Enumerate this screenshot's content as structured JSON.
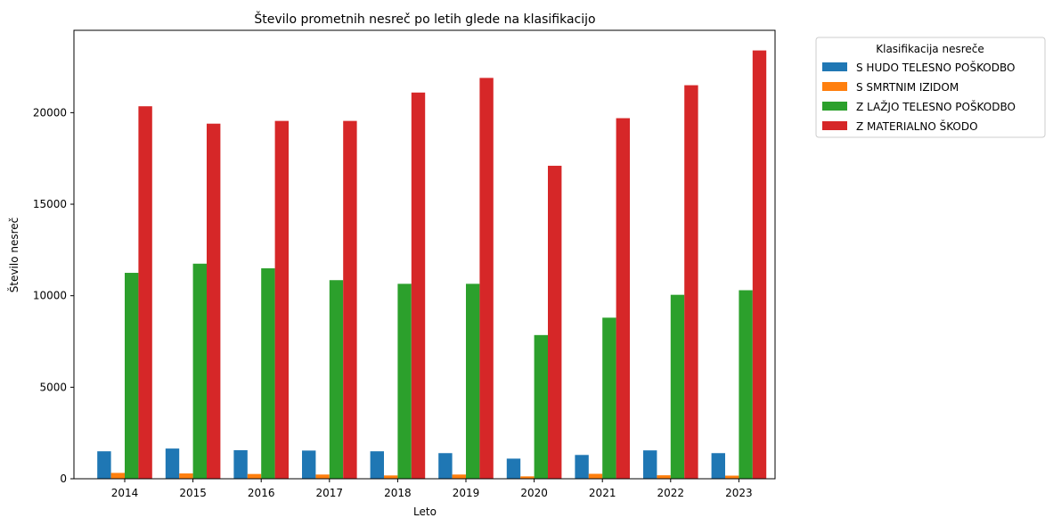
{
  "chart_data": {
    "type": "bar",
    "title": "Število prometnih nesreč po letih glede na klasifikacijo",
    "xlabel": "Leto",
    "ylabel": "Število nesreč",
    "ylim": [
      0,
      24500
    ],
    "yticks": [
      0,
      5000,
      10000,
      15000,
      20000
    ],
    "ytick_labels": [
      "0",
      "5000",
      "10000",
      "15000",
      "20000"
    ],
    "categories": [
      "2014",
      "2015",
      "2016",
      "2017",
      "2018",
      "2019",
      "2020",
      "2021",
      "2022",
      "2023"
    ],
    "legend_title": "Klasifikacija nesreče",
    "legend_position": "outside-top-right",
    "grid": false,
    "series": [
      {
        "name": "S HUDO TELESNO POŠKODBO",
        "color": "#1f77b4",
        "values": [
          1500,
          1650,
          1560,
          1540,
          1500,
          1400,
          1100,
          1300,
          1550,
          1400
        ]
      },
      {
        "name": "S SMRTNIM IZIDOM",
        "color": "#ff7f0e",
        "values": [
          320,
          290,
          260,
          230,
          180,
          230,
          130,
          270,
          190,
          170
        ]
      },
      {
        "name": "Z LAŽJO TELESNO POŠKODBO",
        "color": "#2ca02c",
        "values": [
          11250,
          11750,
          11500,
          10850,
          10650,
          10650,
          7850,
          8800,
          10050,
          10300
        ]
      },
      {
        "name": "Z MATERIALNO ŠKODO",
        "color": "#d62728",
        "values": [
          20350,
          19400,
          19550,
          19550,
          21100,
          21900,
          17100,
          19700,
          21500,
          23400
        ]
      }
    ]
  }
}
